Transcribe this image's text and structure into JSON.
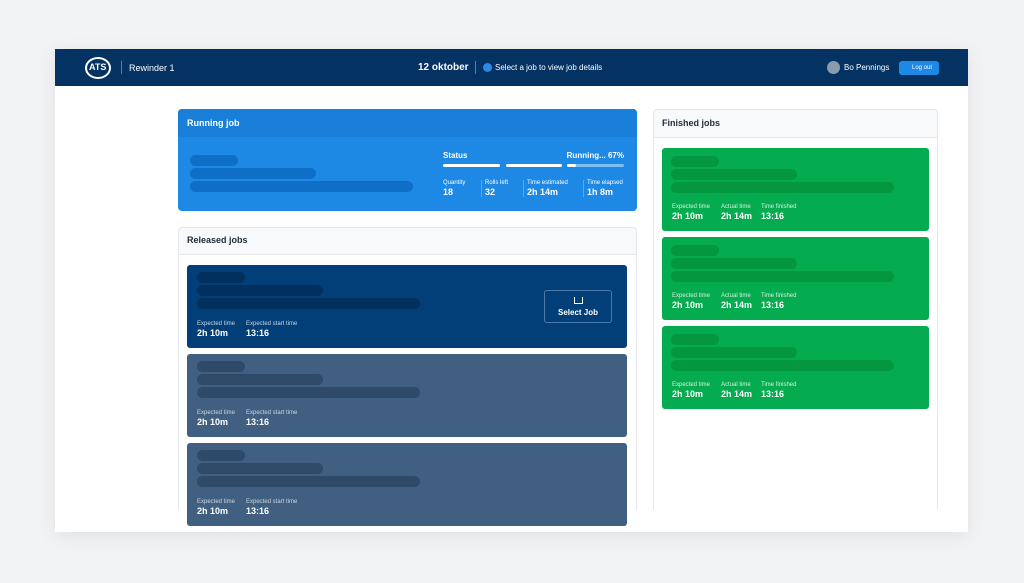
{
  "header": {
    "logo": "ATS",
    "app_name": "Rewinder 1",
    "date": "12 oktober",
    "hint": "Select a job to view job details",
    "user": "Bo Pennings",
    "logout": "Log out"
  },
  "running_job": {
    "title": "Running job",
    "status_label": "Status",
    "status_text": "Running... 67%",
    "stats": [
      {
        "label": "Quantity",
        "value": "18"
      },
      {
        "label": "Rolls left",
        "value": "32"
      },
      {
        "label": "Time estimated",
        "value": "2h 14m"
      },
      {
        "label": "Time elapsed",
        "value": "1h 8m"
      }
    ]
  },
  "released_jobs": {
    "title": "Released jobs",
    "select_label": "Select Job",
    "jobs": [
      {
        "fields": [
          {
            "label": "Expected time",
            "value": "2h 10m"
          },
          {
            "label": "Expected start time",
            "value": "13:16"
          }
        ]
      },
      {
        "fields": [
          {
            "label": "Expected time",
            "value": "2h 10m"
          },
          {
            "label": "Expected start time",
            "value": "13:16"
          }
        ]
      },
      {
        "fields": [
          {
            "label": "Expected time",
            "value": "2h 10m"
          },
          {
            "label": "Expected start time",
            "value": "13:16"
          }
        ]
      }
    ]
  },
  "finished_jobs": {
    "title": "Finished jobs",
    "jobs": [
      {
        "fields": [
          {
            "label": "Expected time",
            "value": "2h 10m"
          },
          {
            "label": "Actual time",
            "value": "2h 14m"
          },
          {
            "label": "Time finished",
            "value": "13:16"
          }
        ]
      },
      {
        "fields": [
          {
            "label": "Expected time",
            "value": "2h 10m"
          },
          {
            "label": "Actual time",
            "value": "2h 14m"
          },
          {
            "label": "Time finished",
            "value": "13:16"
          }
        ]
      },
      {
        "fields": [
          {
            "label": "Expected time",
            "value": "2h 10m"
          },
          {
            "label": "Actual time",
            "value": "2h 14m"
          },
          {
            "label": "Time finished",
            "value": "13:16"
          }
        ]
      }
    ]
  }
}
